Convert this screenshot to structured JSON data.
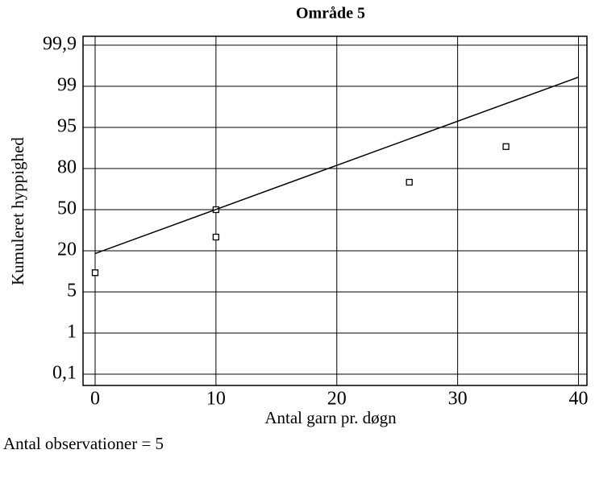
{
  "chart_data": {
    "type": "scatter",
    "title": "Område 5",
    "xlabel": "Antal garn pr. døgn",
    "ylabel": "Kumuleret hyppighed",
    "note": "Antal observationer = 5",
    "yscale": "probability",
    "xlim": [
      -1,
      40.7
    ],
    "xticks": [
      0,
      10,
      20,
      30,
      40
    ],
    "yticks": [
      {
        "value": 0.1,
        "label": "0,1"
      },
      1,
      5,
      20,
      50,
      80,
      95,
      99,
      {
        "value": 99.9,
        "label": "99,9"
      }
    ],
    "grid": true,
    "series": [
      {
        "type": "scatter",
        "color": "#000000",
        "x": [
          0,
          10,
          10,
          26,
          34
        ],
        "values": [
          12,
          50,
          30,
          70,
          88
        ]
      },
      {
        "type": "line",
        "color": "#000000",
        "x": [
          0,
          40
        ],
        "values": [
          19,
          99.2
        ]
      }
    ]
  }
}
